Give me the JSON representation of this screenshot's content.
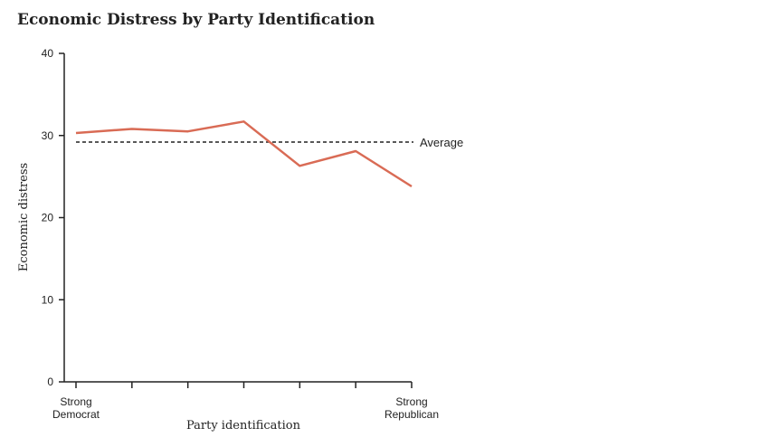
{
  "chart_data": {
    "type": "line",
    "title": "Economic Distress by Party Identification",
    "xlabel": "Party identification",
    "ylabel": "Economic distress",
    "ylim": [
      0,
      40
    ],
    "yticks": [
      0,
      10,
      20,
      30,
      40
    ],
    "x_tick_labels": [
      {
        "index": 0,
        "lines": [
          "Strong",
          "Democrat"
        ]
      },
      {
        "index": 6,
        "lines": [
          "Strong",
          "Republican"
        ]
      }
    ],
    "x_count": 7,
    "values": [
      30.3,
      30.8,
      30.5,
      31.7,
      26.3,
      28.1,
      23.8
    ],
    "average": {
      "value": 29.2,
      "label": "Average"
    },
    "line_color": "#d96b55",
    "grid": false,
    "legend": "none"
  }
}
